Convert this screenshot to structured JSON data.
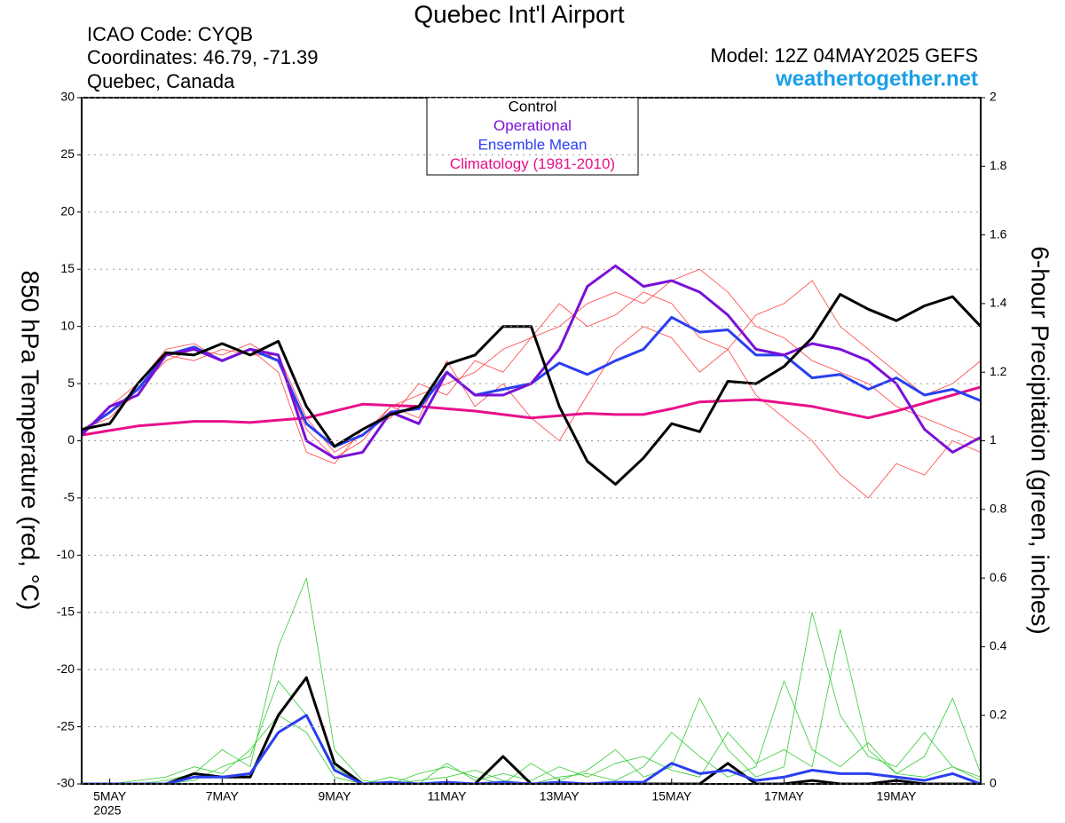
{
  "chart_data": {
    "type": "line",
    "title": "Quebec Int'l Airport",
    "info_lines": [
      "ICAO Code: CYQB",
      "Coordinates: 46.79, -71.39",
      "Quebec, Canada"
    ],
    "model": "Model: 12Z 04MAY2025 GEFS",
    "site": "weathertogether.net",
    "ylabel": "850 hPa Temperature (red, °C)",
    "y2label": "6-hour Precipitation (green, inches)",
    "xtick_year": "2025",
    "x": [
      4.5,
      5,
      5.5,
      6,
      6.5,
      7,
      7.5,
      8,
      8.5,
      9,
      9.5,
      10,
      10.5,
      11,
      11.5,
      12,
      12.5,
      13,
      13.5,
      14,
      14.5,
      15,
      15.5,
      16,
      16.5,
      17,
      17.5,
      18,
      18.5,
      19,
      19.5,
      20,
      20.5
    ],
    "xlim": [
      4.5,
      20.5
    ],
    "xticks": [
      {
        "value": 5,
        "label": "5MAY"
      },
      {
        "value": 7,
        "label": "7MAY"
      },
      {
        "value": 9,
        "label": "9MAY"
      },
      {
        "value": 11,
        "label": "11MAY"
      },
      {
        "value": 13,
        "label": "13MAY"
      },
      {
        "value": 15,
        "label": "15MAY"
      },
      {
        "value": 17,
        "label": "17MAY"
      },
      {
        "value": 19,
        "label": "19MAY"
      }
    ],
    "ylim": [
      -30,
      30
    ],
    "yticks": [
      -30,
      -25,
      -20,
      -15,
      -10,
      -5,
      0,
      5,
      10,
      15,
      20,
      25,
      30
    ],
    "y2lim": [
      0,
      2
    ],
    "y2ticks": [
      0,
      0.2,
      0.4,
      0.6,
      0.8,
      1,
      1.2,
      1.4,
      1.6,
      1.8,
      2
    ],
    "grid": true,
    "legend": "top",
    "series": [
      {
        "name": "Control",
        "color": "#000000",
        "values": [
          1,
          1.5,
          5,
          7.7,
          7.5,
          8.5,
          7.5,
          8.7,
          3,
          -0.5,
          1,
          2.3,
          3,
          6.7,
          7.5,
          10,
          10,
          3,
          -1.8,
          -3.8,
          -1.5,
          1.5,
          0.8,
          5.2,
          5,
          6.5,
          9,
          12.8,
          11.5,
          10.5,
          11.8,
          12.6,
          10
        ]
      },
      {
        "name": "Operational",
        "color": "#7a10d8",
        "values": [
          0.5,
          3,
          4,
          7.5,
          8,
          7,
          8,
          7.5,
          0,
          -1.5,
          -1,
          2.5,
          1.5,
          6,
          4,
          4,
          5,
          8,
          13.5,
          15.3,
          13.5,
          14,
          13,
          11,
          8,
          7.5,
          8.5,
          8,
          7,
          5,
          1,
          -1,
          0.3
        ]
      },
      {
        "name": "Ensemble Mean",
        "color": "#2a3ff0",
        "values": [
          0.8,
          2.5,
          4.5,
          7.5,
          8.2,
          7,
          8,
          7,
          1.5,
          -0.5,
          0.5,
          2.5,
          2.8,
          6,
          4,
          4.5,
          5,
          6.8,
          5.8,
          7,
          8,
          10.8,
          9.5,
          9.7,
          7.5,
          7.5,
          5.5,
          5.8,
          4.5,
          5.5,
          4,
          4.5,
          3.5
        ]
      },
      {
        "name": "Climatology (1981-2010)",
        "color": "#e8108a",
        "values": [
          0.5,
          0.9,
          1.3,
          1.5,
          1.7,
          1.7,
          1.6,
          1.8,
          2,
          2.6,
          3.2,
          3.1,
          3,
          2.8,
          2.6,
          2.3,
          2,
          2.2,
          2.4,
          2.3,
          2.3,
          2.8,
          3.4,
          3.5,
          3.6,
          3.3,
          3,
          2.5,
          2,
          2.6,
          3.3,
          4,
          4.7
        ]
      },
      {
        "ensemble_member": true,
        "color": "#ff4040",
        "values": [
          1,
          2,
          4.5,
          7,
          8,
          7.5,
          8.5,
          7,
          1,
          -1.5,
          0,
          3,
          4,
          5,
          6,
          8,
          9,
          10,
          12,
          13,
          12,
          14,
          15,
          13,
          10,
          9,
          7,
          6,
          5,
          3,
          2,
          1,
          0
        ]
      },
      {
        "ensemble_member": true,
        "color": "#ff4040",
        "values": [
          0.5,
          3,
          5,
          8,
          8.5,
          7,
          8,
          6,
          -1,
          -2,
          1,
          2,
          5,
          4,
          7,
          6,
          9,
          12,
          10,
          11,
          13,
          12,
          9,
          8,
          11,
          12,
          14,
          10,
          8,
          6,
          4,
          5,
          7
        ]
      },
      {
        "ensemble_member": true,
        "color": "#ff4040",
        "values": [
          1,
          2.5,
          4,
          7.5,
          7,
          8,
          7.5,
          7.5,
          2,
          -1,
          0.5,
          3,
          2,
          7,
          3,
          5,
          2,
          0,
          4,
          8,
          10,
          9,
          6,
          8,
          4,
          2,
          0,
          -3,
          -5,
          -2,
          -3,
          0,
          -1
        ]
      },
      {
        "ensemble_member": true,
        "axis": "y2",
        "color": "#33cc33",
        "values": [
          0,
          0,
          0,
          0,
          0.01,
          0.05,
          0.08,
          0.3,
          0.2,
          0.05,
          0,
          0,
          0.01,
          0.02,
          0.04,
          0.01,
          0,
          0.02,
          0.03,
          0.01,
          0.05,
          0.15,
          0.08,
          0.02,
          0.05,
          0.3,
          0.1,
          0.05,
          0.12,
          0.03,
          0.02,
          0.05,
          0.01
        ]
      },
      {
        "ensemble_member": true,
        "axis": "y2",
        "color": "#33cc33",
        "values": [
          0,
          0,
          0,
          0.01,
          0.03,
          0.1,
          0.05,
          0.4,
          0.6,
          0.1,
          0.01,
          0,
          0.03,
          0.05,
          0.02,
          0,
          0.06,
          0.01,
          0.04,
          0.1,
          0.02,
          0.05,
          0.25,
          0.1,
          0.02,
          0.05,
          0.5,
          0.2,
          0.08,
          0.05,
          0.15,
          0.05,
          0.02
        ]
      },
      {
        "ensemble_member": true,
        "axis": "y2",
        "color": "#33cc33",
        "values": [
          0,
          0,
          0.01,
          0.02,
          0.05,
          0.03,
          0.1,
          0.2,
          0.15,
          0.02,
          0,
          0.02,
          0,
          0.06,
          0.01,
          0.03,
          0.01,
          0.05,
          0.02,
          0.06,
          0.08,
          0.04,
          0.02,
          0.15,
          0.06,
          0.1,
          0.05,
          0.45,
          0.1,
          0.03,
          0.08,
          0.25,
          0.03
        ]
      },
      {
        "axis": "y2",
        "color": "#2a3ff0",
        "values": [
          0,
          0,
          0,
          0,
          0.02,
          0.02,
          0.03,
          0.15,
          0.2,
          0.04,
          0,
          0.005,
          0,
          0.005,
          0,
          0.005,
          0,
          0.005,
          0,
          0.005,
          0.005,
          0.06,
          0.03,
          0.04,
          0.01,
          0.02,
          0.04,
          0.03,
          0.03,
          0.02,
          0.01,
          0.03,
          0
        ]
      },
      {
        "axis": "y2",
        "color": "#000000",
        "values": [
          0,
          0,
          0,
          0,
          0.03,
          0.02,
          0.02,
          0.2,
          0.31,
          0.06,
          0,
          0,
          0,
          0,
          0,
          0.08,
          0,
          0,
          0,
          0,
          0,
          0,
          0,
          0.06,
          0,
          0,
          0.01,
          0,
          0,
          0.01,
          0,
          0,
          0
        ]
      }
    ]
  }
}
